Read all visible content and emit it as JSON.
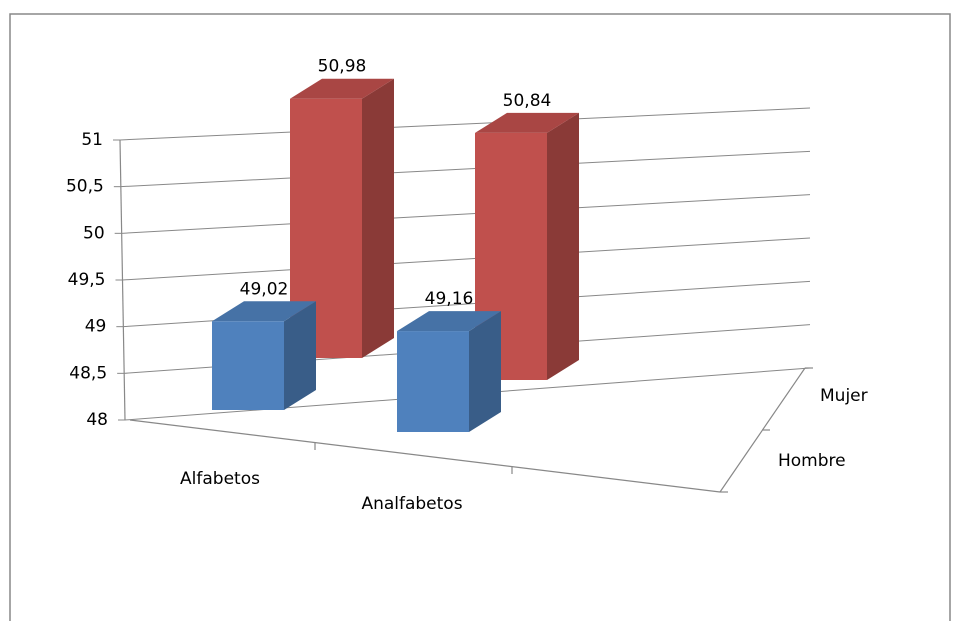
{
  "chart_data": {
    "type": "bar3d",
    "categories": [
      "Alfabetos",
      "Analfabetos"
    ],
    "series": [
      {
        "name": "Hombre",
        "color": "#4f81bd",
        "values": [
          49.02,
          49.16
        ],
        "value_labels": [
          "49,02",
          "49,16"
        ]
      },
      {
        "name": "Mujer",
        "color": "#c0504d",
        "values": [
          50.98,
          50.84
        ],
        "value_labels": [
          "50,98",
          "50,84"
        ]
      }
    ],
    "ylim": [
      48,
      51
    ],
    "yticks": [
      48,
      {
        "value": 48.5,
        "label": "48,5"
      },
      49,
      {
        "value": 49.5,
        "label": "49,5"
      },
      50,
      {
        "value": 50.5,
        "label": "50,5"
      },
      51
    ],
    "grid": true
  }
}
